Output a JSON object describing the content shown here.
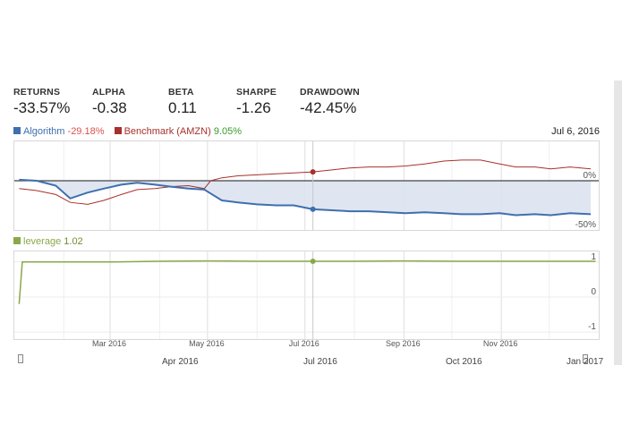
{
  "metrics": [
    {
      "label": "RETURNS",
      "value": "-33.57%"
    },
    {
      "label": "ALPHA",
      "value": "-0.38"
    },
    {
      "label": "BETA",
      "value": "0.11"
    },
    {
      "label": "SHARPE",
      "value": "-1.26"
    },
    {
      "label": "DRAWDOWN",
      "value": "-42.45%"
    }
  ],
  "legend": {
    "algorithm_label": "Algorithm",
    "algorithm_value": "-29.18%",
    "benchmark_label": "Benchmark (AMZN)",
    "benchmark_value": "9.05%",
    "date": "Jul 6, 2016",
    "leverage_label": "leverage",
    "leverage_value": "1.02"
  },
  "colors": {
    "algorithm": "#3f6fae",
    "benchmark": "#a8302c",
    "leverage": "#8aa84a",
    "algorithm_value": "#d9534f",
    "benchmark_value": "#3a9a2a"
  },
  "x_axis": {
    "labels": [
      "Mar 2016",
      "May 2016",
      "Jul 2016",
      "Sep 2016",
      "Nov 2016"
    ],
    "navigator_labels": [
      "Apr 2016",
      "Jul 2016",
      "Oct 2016",
      "Jan 2017"
    ]
  },
  "chart_data": [
    {
      "type": "line",
      "title": "",
      "series": [
        {
          "name": "Algorithm",
          "x": [
            "2016-01-04",
            "2016-01-15",
            "2016-01-27",
            "2016-02-05",
            "2016-02-16",
            "2016-02-26",
            "2016-03-08",
            "2016-03-18",
            "2016-03-29",
            "2016-04-08",
            "2016-04-19",
            "2016-04-29",
            "2016-05-03",
            "2016-05-10",
            "2016-05-20",
            "2016-06-01",
            "2016-06-13",
            "2016-06-24",
            "2016-07-06",
            "2016-07-18",
            "2016-07-29",
            "2016-08-10",
            "2016-08-22",
            "2016-09-02",
            "2016-09-14",
            "2016-09-26",
            "2016-10-07",
            "2016-10-19",
            "2016-10-31",
            "2016-11-10",
            "2016-11-22",
            "2016-12-02",
            "2016-12-14",
            "2016-12-27"
          ],
          "values": [
            1,
            0,
            -5,
            -18,
            -12,
            -8,
            -4,
            -2,
            -4,
            -6,
            -8,
            -9,
            -13,
            -20,
            -22,
            -24,
            -25,
            -25,
            -29,
            -30,
            -31,
            -31,
            -32,
            -33,
            -32,
            -33,
            -34,
            -34,
            -33,
            -35,
            -34,
            -35,
            -33,
            -34
          ]
        },
        {
          "name": "Benchmark (AMZN)",
          "x": [
            "2016-01-04",
            "2016-01-15",
            "2016-01-27",
            "2016-02-05",
            "2016-02-16",
            "2016-02-26",
            "2016-03-08",
            "2016-03-18",
            "2016-03-29",
            "2016-04-08",
            "2016-04-19",
            "2016-04-29",
            "2016-05-03",
            "2016-05-10",
            "2016-05-20",
            "2016-06-01",
            "2016-06-13",
            "2016-06-24",
            "2016-07-06",
            "2016-07-18",
            "2016-07-29",
            "2016-08-10",
            "2016-08-22",
            "2016-09-02",
            "2016-09-14",
            "2016-09-26",
            "2016-10-07",
            "2016-10-19",
            "2016-10-31",
            "2016-11-10",
            "2016-11-22",
            "2016-12-02",
            "2016-12-14",
            "2016-12-27"
          ],
          "values": [
            -8,
            -10,
            -14,
            -22,
            -24,
            -20,
            -14,
            -9,
            -8,
            -6,
            -5,
            -8,
            0,
            3,
            5,
            6,
            7,
            8,
            9,
            11,
            13,
            14,
            14,
            15,
            17,
            20,
            21,
            21,
            17,
            14,
            14,
            12,
            14,
            12
          ]
        }
      ],
      "y_tick_labels": [
        "0%",
        "-50%"
      ],
      "ylim": [
        -50,
        40
      ],
      "grid": true
    },
    {
      "type": "line",
      "title": "",
      "series": [
        {
          "name": "leverage",
          "x": [
            "2016-01-04",
            "2016-01-06",
            "2016-02-01",
            "2016-03-01",
            "2016-04-01",
            "2016-05-02",
            "2016-06-01",
            "2016-07-01",
            "2016-08-01",
            "2016-09-01",
            "2016-10-03",
            "2016-11-01",
            "2016-12-01",
            "2016-12-30"
          ],
          "values": [
            -0.2,
            1.0,
            1.0,
            1.0,
            1.02,
            1.03,
            1.02,
            1.02,
            1.02,
            1.03,
            1.02,
            1.02,
            1.02,
            1.02
          ]
        }
      ],
      "y_tick_labels": [
        "1",
        "0",
        "-1"
      ],
      "ylim": [
        -1.2,
        1.3
      ],
      "grid": true
    }
  ]
}
